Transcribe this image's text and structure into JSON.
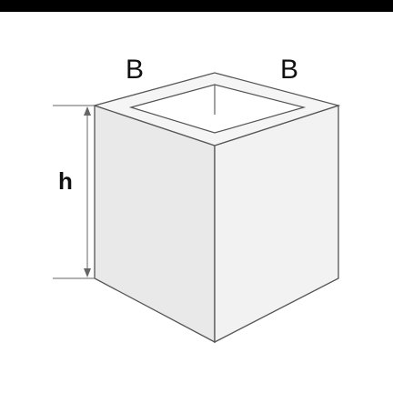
{
  "colors": {
    "top_bar": "#000000",
    "left_face": "#e9e9e9",
    "right_face": "#f2f2f2",
    "rim": "#f5f5f5",
    "opening": "#ffffff",
    "outline": "#555555",
    "dimension_line": "#666666",
    "label_text": "#111111"
  },
  "labels": {
    "width_left": "B",
    "width_right": "B",
    "height": "h"
  },
  "icons": {
    "box": "open-square-box",
    "height_dimension": "double-arrow-vertical"
  }
}
